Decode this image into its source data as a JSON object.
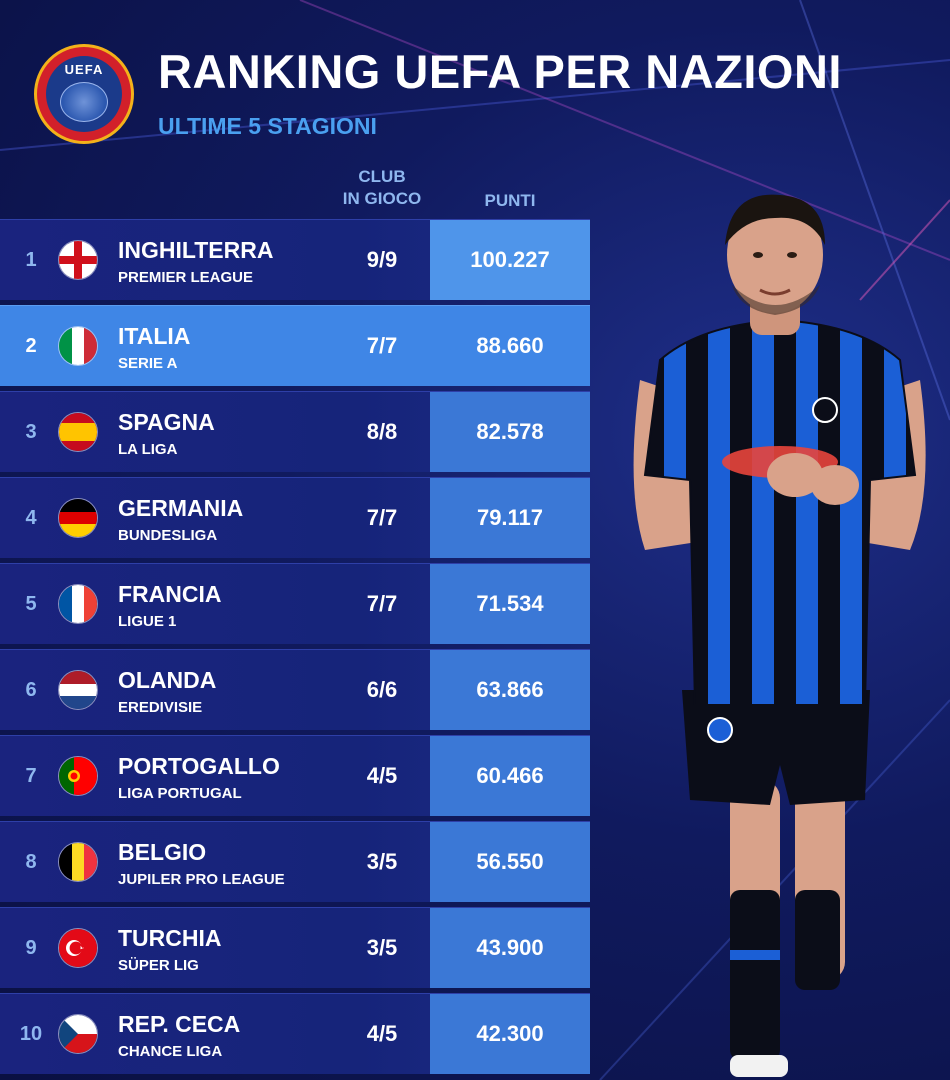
{
  "header": {
    "title": "RANKING UEFA PER NAZIONI",
    "subtitle": "ULTIME 5 STAGIONI",
    "logo_text": "UEFA"
  },
  "columns": {
    "club_line1": "CLUB",
    "club_line2": "IN GIOCO",
    "points": "PUNTI"
  },
  "rows": [
    {
      "rank": "1",
      "country": "INGHILTERRA",
      "league": "PREMIER LEAGUE",
      "clubs": "9/9",
      "points": "100.227",
      "flag": "england-flag"
    },
    {
      "rank": "2",
      "country": "ITALIA",
      "league": "SERIE A",
      "clubs": "7/7",
      "points": "88.660",
      "flag": "italy-flag"
    },
    {
      "rank": "3",
      "country": "SPAGNA",
      "league": "LA LIGA",
      "clubs": "8/8",
      "points": "82.578",
      "flag": "spain-flag"
    },
    {
      "rank": "4",
      "country": "GERMANIA",
      "league": "BUNDESLIGA",
      "clubs": "7/7",
      "points": "79.117",
      "flag": "germany-flag"
    },
    {
      "rank": "5",
      "country": "FRANCIA",
      "league": "LIGUE 1",
      "clubs": "7/7",
      "points": "71.534",
      "flag": "france-flag"
    },
    {
      "rank": "6",
      "country": "OLANDA",
      "league": "EREDIVISIE",
      "clubs": "6/6",
      "points": "63.866",
      "flag": "netherlands-flag"
    },
    {
      "rank": "7",
      "country": "PORTOGALLO",
      "league": "LIGA PORTUGAL",
      "clubs": "4/5",
      "points": "60.466",
      "flag": "portugal-flag"
    },
    {
      "rank": "8",
      "country": "BELGIO",
      "league": "JUPILER PRO LEAGUE",
      "clubs": "3/5",
      "points": "56.550",
      "flag": "belgium-flag"
    },
    {
      "rank": "9",
      "country": "TURCHIA",
      "league": "SÜPER LIG",
      "clubs": "3/5",
      "points": "43.900",
      "flag": "turkey-flag"
    },
    {
      "rank": "10",
      "country": "REP. CECA",
      "league": "CHANCE LIGA",
      "clubs": "4/5",
      "points": "42.300",
      "flag": "czech-flag"
    }
  ],
  "colors": {
    "background": "#101a5e",
    "row": "#1a237e",
    "highlight": "#3f86e6",
    "points_cell": "#3b78d6",
    "accent_text": "#4aa0f0"
  }
}
